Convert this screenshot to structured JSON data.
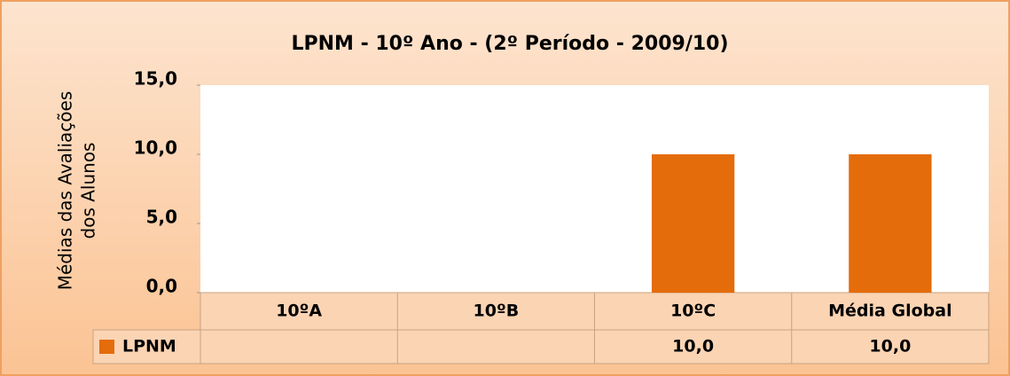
{
  "chart_data": {
    "type": "bar",
    "title": "LPNM - 10º Ano - (2º Período - 2009/10)",
    "ylabel": [
      "Médias das Avaliações",
      "dos Alunos"
    ],
    "categories": [
      "10ºA",
      "10ºB",
      "10ºC",
      "Média Global"
    ],
    "series": [
      {
        "name": "LPNM",
        "color": "#e46c0a",
        "values": [
          null,
          null,
          10,
          10
        ],
        "value_labels": [
          null,
          null,
          "10,0",
          "10,0"
        ]
      }
    ],
    "ylim": [
      0,
      15
    ],
    "yticks": [
      {
        "value": 0,
        "label": "0,0"
      },
      {
        "value": 5,
        "label": "5,0"
      },
      {
        "value": 10,
        "label": "10,0"
      },
      {
        "value": 15,
        "label": "15,0"
      }
    ],
    "grid": false,
    "data_table": true
  }
}
